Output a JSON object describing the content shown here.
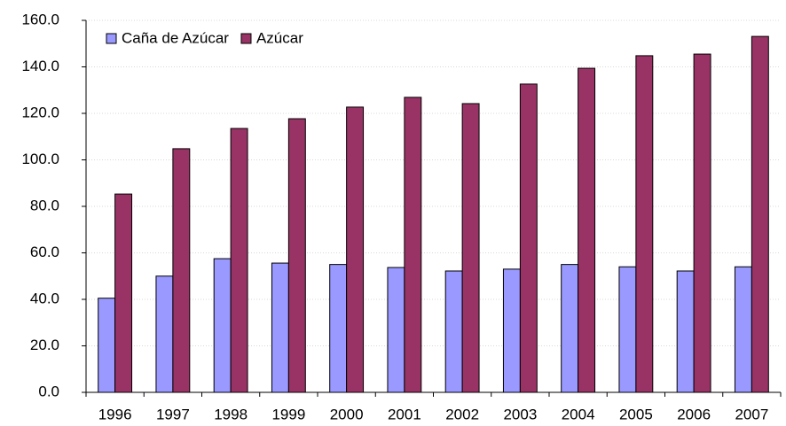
{
  "chart_data": {
    "type": "bar",
    "categories": [
      "1996",
      "1997",
      "1998",
      "1999",
      "2000",
      "2001",
      "2002",
      "2003",
      "2004",
      "2005",
      "2006",
      "2007"
    ],
    "series": [
      {
        "name": "Caña de Azúcar",
        "color": "#9999ff",
        "values": [
          40.5,
          50,
          57.5,
          55.6,
          55,
          53.7,
          52.2,
          53,
          55,
          54,
          52.2,
          54
        ]
      },
      {
        "name": "Azúcar",
        "color": "#993366",
        "values": [
          85.3,
          104.8,
          113.5,
          117.7,
          122.7,
          126.9,
          124.2,
          132.6,
          139.4,
          144.8,
          145.5,
          153.1
        ]
      }
    ],
    "ylim": [
      0,
      160
    ],
    "yticks": [
      {
        "value": 0,
        "label": "0.0"
      },
      {
        "value": 20,
        "label": "20.0"
      },
      {
        "value": 40,
        "label": "40.0"
      },
      {
        "value": 60,
        "label": "60.0"
      },
      {
        "value": 80,
        "label": "80.0"
      },
      {
        "value": 100,
        "label": "100.0"
      },
      {
        "value": 120,
        "label": "120.0"
      },
      {
        "value": 140,
        "label": "140.0"
      },
      {
        "value": 160,
        "label": "160.0"
      }
    ],
    "grid": true,
    "legend": "top-left"
  }
}
